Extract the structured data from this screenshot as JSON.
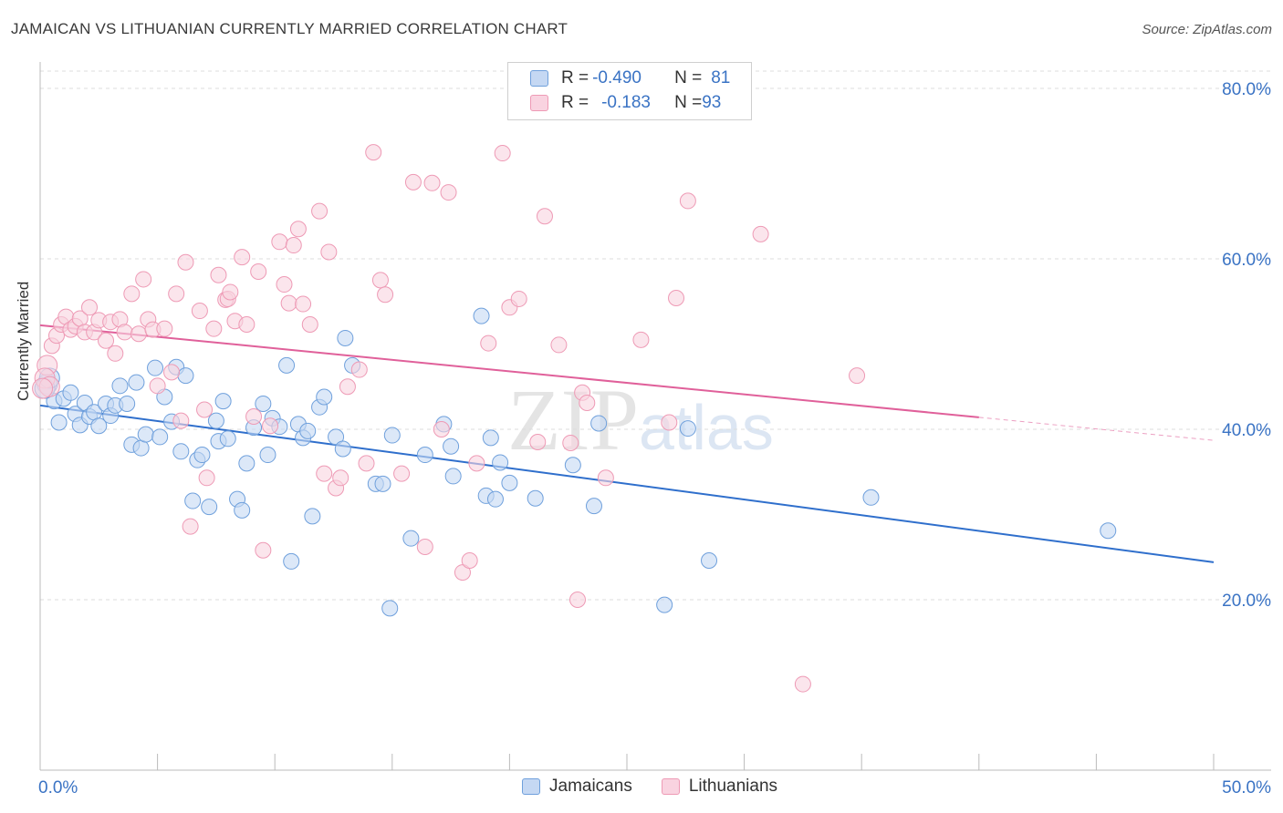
{
  "title": "JAMAICAN VS LITHUANIAN CURRENTLY MARRIED CORRELATION CHART",
  "source": "Source: ZipAtlas.com",
  "watermark": {
    "zip": "ZIP",
    "atlas": "atlas"
  },
  "legend_top": {
    "rows": [
      {
        "r_label": "R = ",
        "r_value": "-0.490",
        "n_label": "N = ",
        "n_value": "81",
        "color": "#a8c4ec"
      },
      {
        "r_label": "R = ",
        "r_value": "-0.183",
        "n_label": "N = ",
        "n_value": "93",
        "color": "#f5b4c8"
      }
    ]
  },
  "legend_bottom": [
    {
      "label": "Jamaicans",
      "color": "#a8c4ec"
    },
    {
      "label": "Lithuanians",
      "color": "#f5b4c8"
    }
  ],
  "chart_data": {
    "type": "scatter",
    "title": "JAMAICAN VS LITHUANIAN CURRENTLY MARRIED CORRELATION CHART",
    "xlabel": "",
    "ylabel": "Currently Married",
    "xlim": [
      0,
      50
    ],
    "ylim": [
      0,
      80
    ],
    "x_tick_labels": [
      "0.0%",
      "50.0%"
    ],
    "y_ticks": [
      20,
      40,
      60,
      80
    ],
    "y_tick_labels": [
      "20.0%",
      "40.0%",
      "60.0%",
      "80.0%"
    ],
    "grid": true,
    "legend_placement": "top-center",
    "series": [
      {
        "name": "Jamaicans",
        "color": "#6fa0dc",
        "fill": "#c5d8f3",
        "line_color": "#2f6fcc",
        "trend": {
          "x": [
            0,
            50
          ],
          "y": [
            42.8,
            24.4
          ]
        },
        "points": [
          [
            0.3,
            45.3
          ],
          [
            0.6,
            43.3
          ],
          [
            0.8,
            40.8
          ],
          [
            1.0,
            43.6
          ],
          [
            1.3,
            44.3
          ],
          [
            1.5,
            41.8
          ],
          [
            1.7,
            40.5
          ],
          [
            1.9,
            43.1
          ],
          [
            2.1,
            41.5
          ],
          [
            2.3,
            42.0
          ],
          [
            2.5,
            40.4
          ],
          [
            2.8,
            43.0
          ],
          [
            3.0,
            41.6
          ],
          [
            3.2,
            42.8
          ],
          [
            3.4,
            45.1
          ],
          [
            3.7,
            43.0
          ],
          [
            3.9,
            38.2
          ],
          [
            4.1,
            45.5
          ],
          [
            4.3,
            37.8
          ],
          [
            4.5,
            39.4
          ],
          [
            4.9,
            47.2
          ],
          [
            5.1,
            39.1
          ],
          [
            5.3,
            43.8
          ],
          [
            5.6,
            40.9
          ],
          [
            5.8,
            47.3
          ],
          [
            6.0,
            37.4
          ],
          [
            6.2,
            46.3
          ],
          [
            6.5,
            31.6
          ],
          [
            6.7,
            36.4
          ],
          [
            6.9,
            37.0
          ],
          [
            7.2,
            30.9
          ],
          [
            7.5,
            41.0
          ],
          [
            7.6,
            38.6
          ],
          [
            7.8,
            43.3
          ],
          [
            8.0,
            38.9
          ],
          [
            8.4,
            31.8
          ],
          [
            8.6,
            30.5
          ],
          [
            8.8,
            36.0
          ],
          [
            9.1,
            40.2
          ],
          [
            9.5,
            43.0
          ],
          [
            9.7,
            37.0
          ],
          [
            9.9,
            41.3
          ],
          [
            10.2,
            40.3
          ],
          [
            10.5,
            47.5
          ],
          [
            10.7,
            24.5
          ],
          [
            11.0,
            40.6
          ],
          [
            11.2,
            39.0
          ],
          [
            11.4,
            39.8
          ],
          [
            11.6,
            29.8
          ],
          [
            11.9,
            42.6
          ],
          [
            12.1,
            43.8
          ],
          [
            12.6,
            39.1
          ],
          [
            12.9,
            37.7
          ],
          [
            13.0,
            50.7
          ],
          [
            13.3,
            47.5
          ],
          [
            14.3,
            33.6
          ],
          [
            14.6,
            33.6
          ],
          [
            14.9,
            19.0
          ],
          [
            15.0,
            39.3
          ],
          [
            15.8,
            27.2
          ],
          [
            16.4,
            37.0
          ],
          [
            17.2,
            40.6
          ],
          [
            17.5,
            38.0
          ],
          [
            17.6,
            34.5
          ],
          [
            18.8,
            53.3
          ],
          [
            19.0,
            32.2
          ],
          [
            19.2,
            39.0
          ],
          [
            19.4,
            31.8
          ],
          [
            19.6,
            36.1
          ],
          [
            20.0,
            33.7
          ],
          [
            21.1,
            31.9
          ],
          [
            22.7,
            35.8
          ],
          [
            23.6,
            31.0
          ],
          [
            23.8,
            40.7
          ],
          [
            26.6,
            19.4
          ],
          [
            27.6,
            40.1
          ],
          [
            28.5,
            24.6
          ],
          [
            35.4,
            32.0
          ],
          [
            45.5,
            28.1
          ],
          [
            0.2,
            44.8
          ],
          [
            0.4,
            46.0
          ]
        ]
      },
      {
        "name": "Lithuanians",
        "color": "#ee9ab5",
        "fill": "#f9d3e0",
        "line_color": "#e0609a",
        "trend": {
          "x": [
            0,
            40
          ],
          "y": [
            52.2,
            41.4
          ]
        },
        "trend_dashed": {
          "x": [
            40,
            50
          ],
          "y": [
            41.4,
            38.7
          ]
        },
        "points": [
          [
            0.3,
            47.5
          ],
          [
            0.5,
            49.8
          ],
          [
            0.7,
            51.0
          ],
          [
            0.9,
            52.3
          ],
          [
            1.1,
            53.2
          ],
          [
            1.3,
            51.7
          ],
          [
            1.5,
            52.1
          ],
          [
            1.7,
            53.0
          ],
          [
            1.9,
            51.4
          ],
          [
            2.1,
            54.3
          ],
          [
            2.3,
            51.4
          ],
          [
            2.5,
            52.8
          ],
          [
            2.8,
            50.4
          ],
          [
            3.0,
            52.6
          ],
          [
            3.2,
            48.9
          ],
          [
            3.4,
            52.9
          ],
          [
            3.6,
            51.4
          ],
          [
            3.9,
            55.9
          ],
          [
            4.2,
            51.2
          ],
          [
            4.4,
            57.6
          ],
          [
            4.6,
            52.9
          ],
          [
            4.8,
            51.7
          ],
          [
            5.0,
            45.1
          ],
          [
            5.3,
            51.8
          ],
          [
            5.6,
            46.7
          ],
          [
            5.8,
            55.9
          ],
          [
            6.0,
            41.0
          ],
          [
            6.2,
            59.6
          ],
          [
            6.4,
            28.6
          ],
          [
            6.8,
            53.9
          ],
          [
            7.0,
            42.3
          ],
          [
            7.1,
            34.3
          ],
          [
            7.4,
            51.8
          ],
          [
            7.6,
            58.1
          ],
          [
            7.9,
            55.2
          ],
          [
            8.0,
            55.3
          ],
          [
            8.1,
            56.1
          ],
          [
            8.3,
            52.7
          ],
          [
            8.6,
            60.2
          ],
          [
            8.8,
            52.3
          ],
          [
            9.1,
            41.5
          ],
          [
            9.3,
            58.5
          ],
          [
            9.5,
            25.8
          ],
          [
            9.8,
            40.4
          ],
          [
            10.2,
            62.0
          ],
          [
            10.4,
            57.0
          ],
          [
            10.6,
            54.8
          ],
          [
            10.8,
            61.6
          ],
          [
            11.0,
            63.5
          ],
          [
            11.2,
            54.7
          ],
          [
            11.5,
            52.3
          ],
          [
            11.9,
            65.6
          ],
          [
            12.1,
            34.8
          ],
          [
            12.3,
            60.8
          ],
          [
            12.6,
            33.1
          ],
          [
            12.8,
            34.3
          ],
          [
            13.1,
            45.0
          ],
          [
            13.6,
            47.0
          ],
          [
            13.9,
            36.0
          ],
          [
            14.2,
            72.5
          ],
          [
            14.5,
            57.5
          ],
          [
            14.7,
            55.8
          ],
          [
            15.4,
            34.8
          ],
          [
            15.9,
            69.0
          ],
          [
            16.4,
            26.2
          ],
          [
            16.7,
            68.9
          ],
          [
            17.1,
            40.0
          ],
          [
            17.4,
            67.8
          ],
          [
            18.0,
            23.2
          ],
          [
            18.3,
            24.6
          ],
          [
            18.6,
            36.0
          ],
          [
            19.1,
            50.1
          ],
          [
            19.7,
            72.4
          ],
          [
            20.0,
            54.3
          ],
          [
            20.4,
            55.3
          ],
          [
            21.2,
            38.5
          ],
          [
            21.5,
            65.0
          ],
          [
            22.1,
            49.9
          ],
          [
            22.6,
            38.4
          ],
          [
            22.9,
            20.0
          ],
          [
            23.1,
            44.3
          ],
          [
            23.3,
            43.1
          ],
          [
            24.1,
            34.3
          ],
          [
            25.6,
            50.5
          ],
          [
            26.8,
            40.8
          ],
          [
            27.1,
            55.4
          ],
          [
            27.6,
            66.8
          ],
          [
            30.7,
            62.9
          ],
          [
            32.5,
            10.1
          ],
          [
            34.8,
            46.3
          ],
          [
            0.2,
            46.0
          ],
          [
            0.4,
            45.0
          ],
          [
            0.1,
            44.8
          ]
        ]
      }
    ]
  }
}
